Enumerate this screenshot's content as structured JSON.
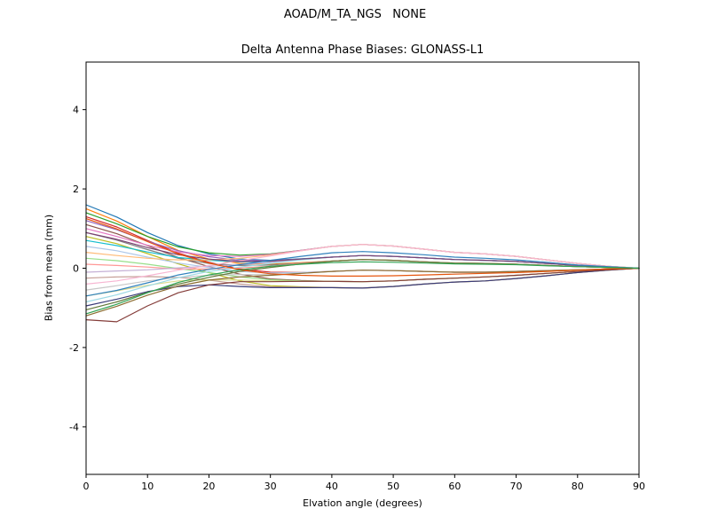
{
  "page": {
    "background": "#ffffff"
  },
  "header": {
    "suptitle": "AOAD/M_TA_NGS   NONE"
  },
  "chart_data": {
    "type": "line",
    "title": "Delta Antenna Phase Biases: GLONASS-L1",
    "xlabel": "Elvation angle (degrees)",
    "ylabel": "Bias from mean (mm)",
    "xlim": [
      0,
      90
    ],
    "ylim": [
      -5.2,
      5.2
    ],
    "x_ticks": [
      0,
      10,
      20,
      30,
      40,
      50,
      60,
      70,
      80,
      90
    ],
    "y_ticks": [
      -4,
      -2,
      0,
      2,
      4
    ],
    "grid": false,
    "legend_position": "none",
    "axis_color": "#000000",
    "line_width": 1.2,
    "x": [
      0,
      5,
      10,
      15,
      20,
      25,
      30,
      35,
      40,
      45,
      50,
      55,
      60,
      65,
      70,
      75,
      80,
      85,
      90
    ],
    "series": [
      {
        "name": "line-01",
        "color": "#1f77b4",
        "values": [
          1.6,
          1.29,
          0.9,
          0.57,
          0.36,
          0.23,
          0.2,
          0.24,
          0.28,
          0.32,
          0.3,
          0.26,
          0.22,
          0.2,
          0.17,
          0.12,
          0.07,
          0.03,
          0.0
        ]
      },
      {
        "name": "line-02",
        "color": "#ff7f0e",
        "values": [
          1.5,
          1.19,
          0.8,
          0.45,
          0.23,
          0.12,
          0.1,
          0.14,
          0.18,
          0.22,
          0.2,
          0.16,
          0.13,
          0.12,
          0.1,
          0.07,
          0.04,
          0.02,
          0.0
        ]
      },
      {
        "name": "line-03",
        "color": "#2ca02c",
        "values": [
          1.4,
          1.12,
          0.8,
          0.54,
          0.39,
          0.33,
          0.36,
          0.45,
          0.55,
          0.6,
          0.56,
          0.48,
          0.4,
          0.36,
          0.3,
          0.21,
          0.12,
          0.05,
          0.0
        ]
      },
      {
        "name": "line-04",
        "color": "#d62728",
        "values": [
          1.3,
          1.04,
          0.7,
          0.38,
          0.15,
          -0.02,
          -0.1,
          -0.11,
          -0.08,
          -0.05,
          -0.06,
          -0.08,
          -0.1,
          -0.1,
          -0.08,
          -0.06,
          -0.04,
          -0.02,
          0.0
        ]
      },
      {
        "name": "line-05",
        "color": "#9467bd",
        "values": [
          1.2,
          0.97,
          0.68,
          0.44,
          0.29,
          0.2,
          0.19,
          0.23,
          0.28,
          0.32,
          0.3,
          0.26,
          0.22,
          0.2,
          0.17,
          0.12,
          0.07,
          0.03,
          0.0
        ]
      },
      {
        "name": "line-06",
        "color": "#8c564b",
        "values": [
          1.1,
          0.87,
          0.57,
          0.27,
          0.04,
          -0.15,
          -0.27,
          -0.31,
          -0.33,
          -0.34,
          -0.32,
          -0.28,
          -0.25,
          -0.22,
          -0.18,
          -0.13,
          -0.08,
          -0.04,
          0.0
        ]
      },
      {
        "name": "line-07",
        "color": "#e377c2",
        "values": [
          1.0,
          0.8,
          0.58,
          0.41,
          0.32,
          0.3,
          0.35,
          0.45,
          0.55,
          0.6,
          0.56,
          0.48,
          0.4,
          0.36,
          0.3,
          0.21,
          0.12,
          0.05,
          0.0
        ]
      },
      {
        "name": "line-08",
        "color": "#7f7f7f",
        "values": [
          0.9,
          0.71,
          0.47,
          0.25,
          0.12,
          0.07,
          0.08,
          0.13,
          0.18,
          0.22,
          0.2,
          0.16,
          0.13,
          0.12,
          0.1,
          0.07,
          0.04,
          0.02,
          0.0
        ]
      },
      {
        "name": "line-09",
        "color": "#bcbd22",
        "values": [
          0.8,
          0.62,
          0.37,
          0.11,
          -0.11,
          -0.32,
          -0.44,
          -0.47,
          -0.49,
          -0.5,
          -0.46,
          -0.4,
          -0.35,
          -0.32,
          -0.26,
          -0.19,
          -0.11,
          -0.05,
          0.0
        ]
      },
      {
        "name": "line-10",
        "color": "#17becf",
        "values": [
          0.7,
          0.57,
          0.41,
          0.27,
          0.2,
          0.16,
          0.17,
          0.23,
          0.28,
          0.32,
          0.3,
          0.26,
          0.22,
          0.2,
          0.17,
          0.12,
          0.07,
          0.03,
          0.0
        ]
      },
      {
        "name": "line-11",
        "color": "#aec7e8",
        "values": [
          0.55,
          0.44,
          0.28,
          0.13,
          0.02,
          -0.08,
          -0.12,
          -0.11,
          -0.08,
          -0.05,
          -0.06,
          -0.08,
          -0.1,
          -0.1,
          -0.08,
          -0.06,
          -0.04,
          -0.02,
          0.0
        ]
      },
      {
        "name": "line-12",
        "color": "#ffbb78",
        "values": [
          0.4,
          0.32,
          0.25,
          0.21,
          0.21,
          0.25,
          0.33,
          0.44,
          0.55,
          0.6,
          0.56,
          0.48,
          0.4,
          0.36,
          0.3,
          0.21,
          0.12,
          0.05,
          0.0
        ]
      },
      {
        "name": "line-13",
        "color": "#98df8a",
        "values": [
          0.25,
          0.19,
          0.1,
          -0.01,
          -0.11,
          -0.22,
          -0.29,
          -0.32,
          -0.33,
          -0.34,
          -0.32,
          -0.28,
          -0.25,
          -0.22,
          -0.18,
          -0.13,
          -0.08,
          -0.04,
          0.0
        ]
      },
      {
        "name": "line-14",
        "color": "#ff9896",
        "values": [
          0.1,
          0.07,
          0.03,
          -0.02,
          -0.02,
          0.01,
          0.05,
          0.12,
          0.18,
          0.22,
          0.2,
          0.16,
          0.13,
          0.12,
          0.1,
          0.07,
          0.04,
          0.02,
          0.0
        ]
      },
      {
        "name": "line-15",
        "color": "#c5b0d5",
        "values": [
          -0.1,
          -0.07,
          -0.04,
          0.01,
          0.05,
          0.09,
          0.15,
          0.22,
          0.28,
          0.32,
          0.3,
          0.26,
          0.22,
          0.2,
          0.17,
          0.12,
          0.07,
          0.03,
          0.0
        ]
      },
      {
        "name": "line-16",
        "color": "#c49c94",
        "values": [
          -0.25,
          -0.22,
          -0.21,
          -0.23,
          -0.3,
          -0.4,
          -0.47,
          -0.48,
          -0.49,
          -0.5,
          -0.46,
          -0.4,
          -0.35,
          -0.32,
          -0.26,
          -0.19,
          -0.11,
          -0.05,
          0.0
        ]
      },
      {
        "name": "line-17",
        "color": "#f7b6d2",
        "values": [
          -0.4,
          -0.32,
          -0.19,
          -0.05,
          0.07,
          0.19,
          0.31,
          0.44,
          0.55,
          0.6,
          0.56,
          0.48,
          0.4,
          0.36,
          0.3,
          0.21,
          0.12,
          0.05,
          0.0
        ]
      },
      {
        "name": "line-18",
        "color": "#c7c7c7",
        "values": [
          -0.55,
          -0.44,
          -0.32,
          -0.23,
          -0.18,
          -0.16,
          -0.16,
          -0.13,
          -0.08,
          -0.05,
          -0.06,
          -0.08,
          -0.1,
          -0.1,
          -0.08,
          -0.06,
          -0.04,
          -0.02,
          0.0
        ]
      },
      {
        "name": "line-19",
        "color": "#dbdb8d",
        "values": [
          -0.7,
          -0.57,
          -0.43,
          -0.32,
          -0.29,
          -0.3,
          -0.32,
          -0.33,
          -0.33,
          -0.34,
          -0.32,
          -0.28,
          -0.25,
          -0.22,
          -0.18,
          -0.13,
          -0.08,
          -0.04,
          0.0
        ]
      },
      {
        "name": "line-20",
        "color": "#9edae5",
        "values": [
          -0.85,
          -0.67,
          -0.45,
          -0.24,
          -0.08,
          0.03,
          0.12,
          0.21,
          0.28,
          0.32,
          0.3,
          0.26,
          0.22,
          0.2,
          0.17,
          0.12,
          0.07,
          0.03,
          0.0
        ]
      },
      {
        "name": "line-21",
        "color": "#393b79",
        "values": [
          -0.95,
          -0.78,
          -0.59,
          -0.46,
          -0.42,
          -0.46,
          -0.49,
          -0.49,
          -0.49,
          -0.5,
          -0.46,
          -0.4,
          -0.35,
          -0.32,
          -0.26,
          -0.19,
          -0.11,
          -0.05,
          0.0
        ]
      },
      {
        "name": "line-22",
        "color": "#637939",
        "values": [
          -1.05,
          -0.85,
          -0.61,
          -0.4,
          -0.23,
          -0.08,
          0.02,
          0.11,
          0.18,
          0.22,
          0.2,
          0.16,
          0.13,
          0.12,
          0.1,
          0.07,
          0.04,
          0.02,
          0.0
        ]
      },
      {
        "name": "line-23",
        "color": "#8c6d31",
        "values": [
          -1.2,
          -0.96,
          -0.68,
          -0.45,
          -0.3,
          -0.22,
          -0.18,
          -0.13,
          -0.08,
          -0.05,
          -0.06,
          -0.08,
          -0.1,
          -0.1,
          -0.08,
          -0.06,
          -0.04,
          -0.02,
          0.0
        ]
      },
      {
        "name": "line-24",
        "color": "#843c39",
        "values": [
          -1.3,
          -1.35,
          -0.95,
          -0.62,
          -0.42,
          -0.34,
          -0.34,
          -0.33,
          -0.33,
          -0.34,
          -0.32,
          -0.28,
          -0.25,
          -0.22,
          -0.18,
          -0.13,
          -0.08,
          -0.04,
          0.0
        ]
      },
      {
        "name": "line-25",
        "color": "#7b4173",
        "values": [
          0.9,
          0.73,
          0.52,
          0.34,
          0.23,
          0.17,
          0.18,
          0.23,
          0.28,
          0.32,
          0.3,
          0.26,
          0.22,
          0.2,
          0.17,
          0.12,
          0.07,
          0.03,
          0.0
        ]
      },
      {
        "name": "line-26",
        "color": "#3182bd",
        "values": [
          -0.7,
          -0.56,
          -0.37,
          -0.17,
          -0.03,
          0.09,
          0.2,
          0.3,
          0.39,
          0.42,
          0.39,
          0.34,
          0.28,
          0.25,
          0.21,
          0.15,
          0.08,
          0.04,
          0.0
        ]
      },
      {
        "name": "line-27",
        "color": "#e6550d",
        "values": [
          1.25,
          0.99,
          0.67,
          0.36,
          0.13,
          -0.04,
          -0.14,
          -0.18,
          -0.2,
          -0.2,
          -0.19,
          -0.17,
          -0.15,
          -0.13,
          -0.11,
          -0.08,
          -0.05,
          -0.02,
          0.0
        ]
      },
      {
        "name": "line-28",
        "color": "#31a354",
        "values": [
          -1.15,
          -0.91,
          -0.62,
          -0.36,
          -0.17,
          -0.04,
          0.05,
          0.1,
          0.14,
          0.16,
          0.15,
          0.13,
          0.11,
          0.1,
          0.09,
          0.06,
          0.04,
          0.02,
          0.0
        ]
      }
    ]
  }
}
